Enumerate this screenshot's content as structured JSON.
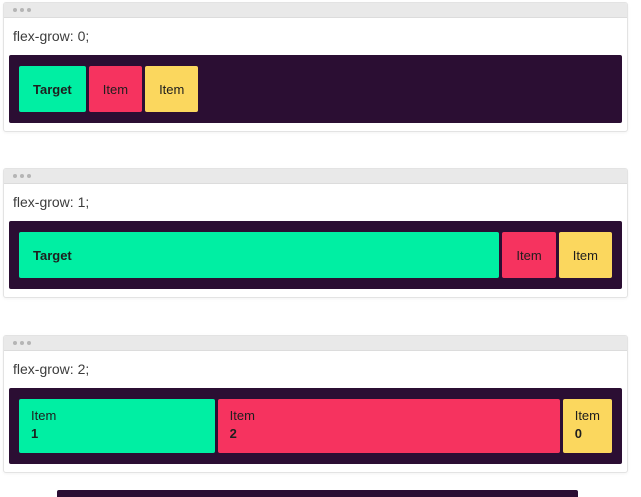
{
  "colors": {
    "container-bg": "#2b0e33",
    "target-green": "#00efa3",
    "item-pink": "#f6335f",
    "item-yellow": "#fbd75e",
    "chrome-bg": "#e9e9e9",
    "chrome-dot": "#b5b5b5",
    "panel-border": "#e3e3e3",
    "label-text": "#3c3c3c",
    "item-text": "#1e1e1e"
  },
  "panels": [
    {
      "label": "flex-grow: 0;",
      "items": [
        {
          "text": "Target"
        },
        {
          "text": "Item"
        },
        {
          "text": "Item"
        }
      ]
    },
    {
      "label": "flex-grow: 1;",
      "items": [
        {
          "text": "Target"
        },
        {
          "text": "Item"
        },
        {
          "text": "Item"
        }
      ]
    },
    {
      "label": "flex-grow: 2;",
      "items": [
        {
          "name": "Item",
          "value": "1"
        },
        {
          "name": "Item",
          "value": "2"
        },
        {
          "name": "Item",
          "value": "0"
        }
      ]
    }
  ]
}
